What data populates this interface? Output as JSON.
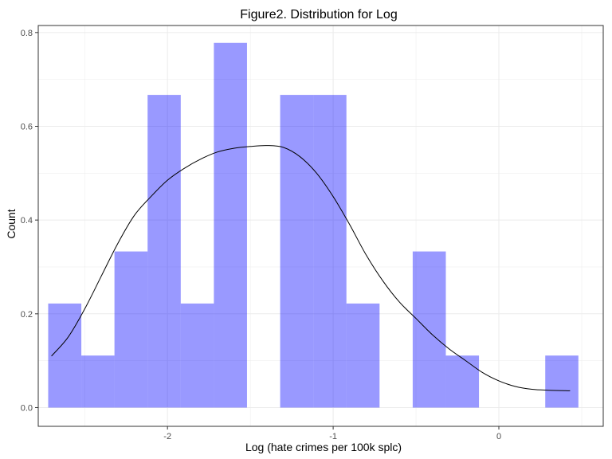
{
  "chart_data": {
    "type": "bar",
    "title": "Figure2. Distribution for Log",
    "xlabel": "Log (hate crimes per 100k splc)",
    "ylabel": "Count",
    "xlim": [
      -2.78,
      0.63
    ],
    "ylim": [
      -0.04,
      0.815
    ],
    "x_ticks": [
      -2,
      -1,
      0
    ],
    "x_tick_labels": [
      "-2",
      "-1",
      "0"
    ],
    "y_ticks": [
      0.0,
      0.2,
      0.4,
      0.6,
      0.8
    ],
    "y_tick_labels": [
      "0.0",
      "0.2",
      "0.4",
      "0.6",
      "0.8"
    ],
    "grid": true,
    "bin_width": 0.2,
    "series": [
      {
        "kind": "histogram",
        "bars": [
          {
            "x0": -2.72,
            "x1": -2.52,
            "value": 0.222
          },
          {
            "x0": -2.52,
            "x1": -2.32,
            "value": 0.111
          },
          {
            "x0": -2.32,
            "x1": -2.12,
            "value": 0.333
          },
          {
            "x0": -2.12,
            "x1": -1.92,
            "value": 0.667
          },
          {
            "x0": -1.92,
            "x1": -1.72,
            "value": 0.222
          },
          {
            "x0": -1.72,
            "x1": -1.52,
            "value": 0.778
          },
          {
            "x0": -1.52,
            "x1": -1.32,
            "value": 0.0
          },
          {
            "x0": -1.32,
            "x1": -1.12,
            "value": 0.667
          },
          {
            "x0": -1.12,
            "x1": -0.92,
            "value": 0.667
          },
          {
            "x0": -0.92,
            "x1": -0.72,
            "value": 0.222
          },
          {
            "x0": -0.72,
            "x1": -0.52,
            "value": 0.0
          },
          {
            "x0": -0.52,
            "x1": -0.32,
            "value": 0.333
          },
          {
            "x0": -0.32,
            "x1": -0.12,
            "value": 0.111
          },
          {
            "x0": -0.12,
            "x1": 0.08,
            "value": 0.0
          },
          {
            "x0": 0.08,
            "x1": 0.28,
            "value": 0.0
          },
          {
            "x0": 0.28,
            "x1": 0.48,
            "value": 0.111
          }
        ],
        "color": "#0000ff",
        "opacity": 0.4
      },
      {
        "kind": "density",
        "x": [
          -2.7,
          -2.6,
          -2.5,
          -2.4,
          -2.3,
          -2.2,
          -2.1,
          -2.0,
          -1.9,
          -1.8,
          -1.7,
          -1.6,
          -1.5,
          -1.4,
          -1.3,
          -1.2,
          -1.1,
          -1.0,
          -0.9,
          -0.8,
          -0.7,
          -0.6,
          -0.5,
          -0.4,
          -0.3,
          -0.2,
          -0.1,
          0.0,
          0.1,
          0.2,
          0.3,
          0.4,
          0.43
        ],
        "y": [
          0.11,
          0.15,
          0.21,
          0.28,
          0.35,
          0.41,
          0.45,
          0.485,
          0.51,
          0.53,
          0.545,
          0.553,
          0.557,
          0.559,
          0.555,
          0.535,
          0.5,
          0.45,
          0.39,
          0.325,
          0.27,
          0.225,
          0.19,
          0.155,
          0.125,
          0.1,
          0.075,
          0.057,
          0.045,
          0.039,
          0.037,
          0.036,
          0.036
        ],
        "color": "#000000"
      }
    ]
  }
}
